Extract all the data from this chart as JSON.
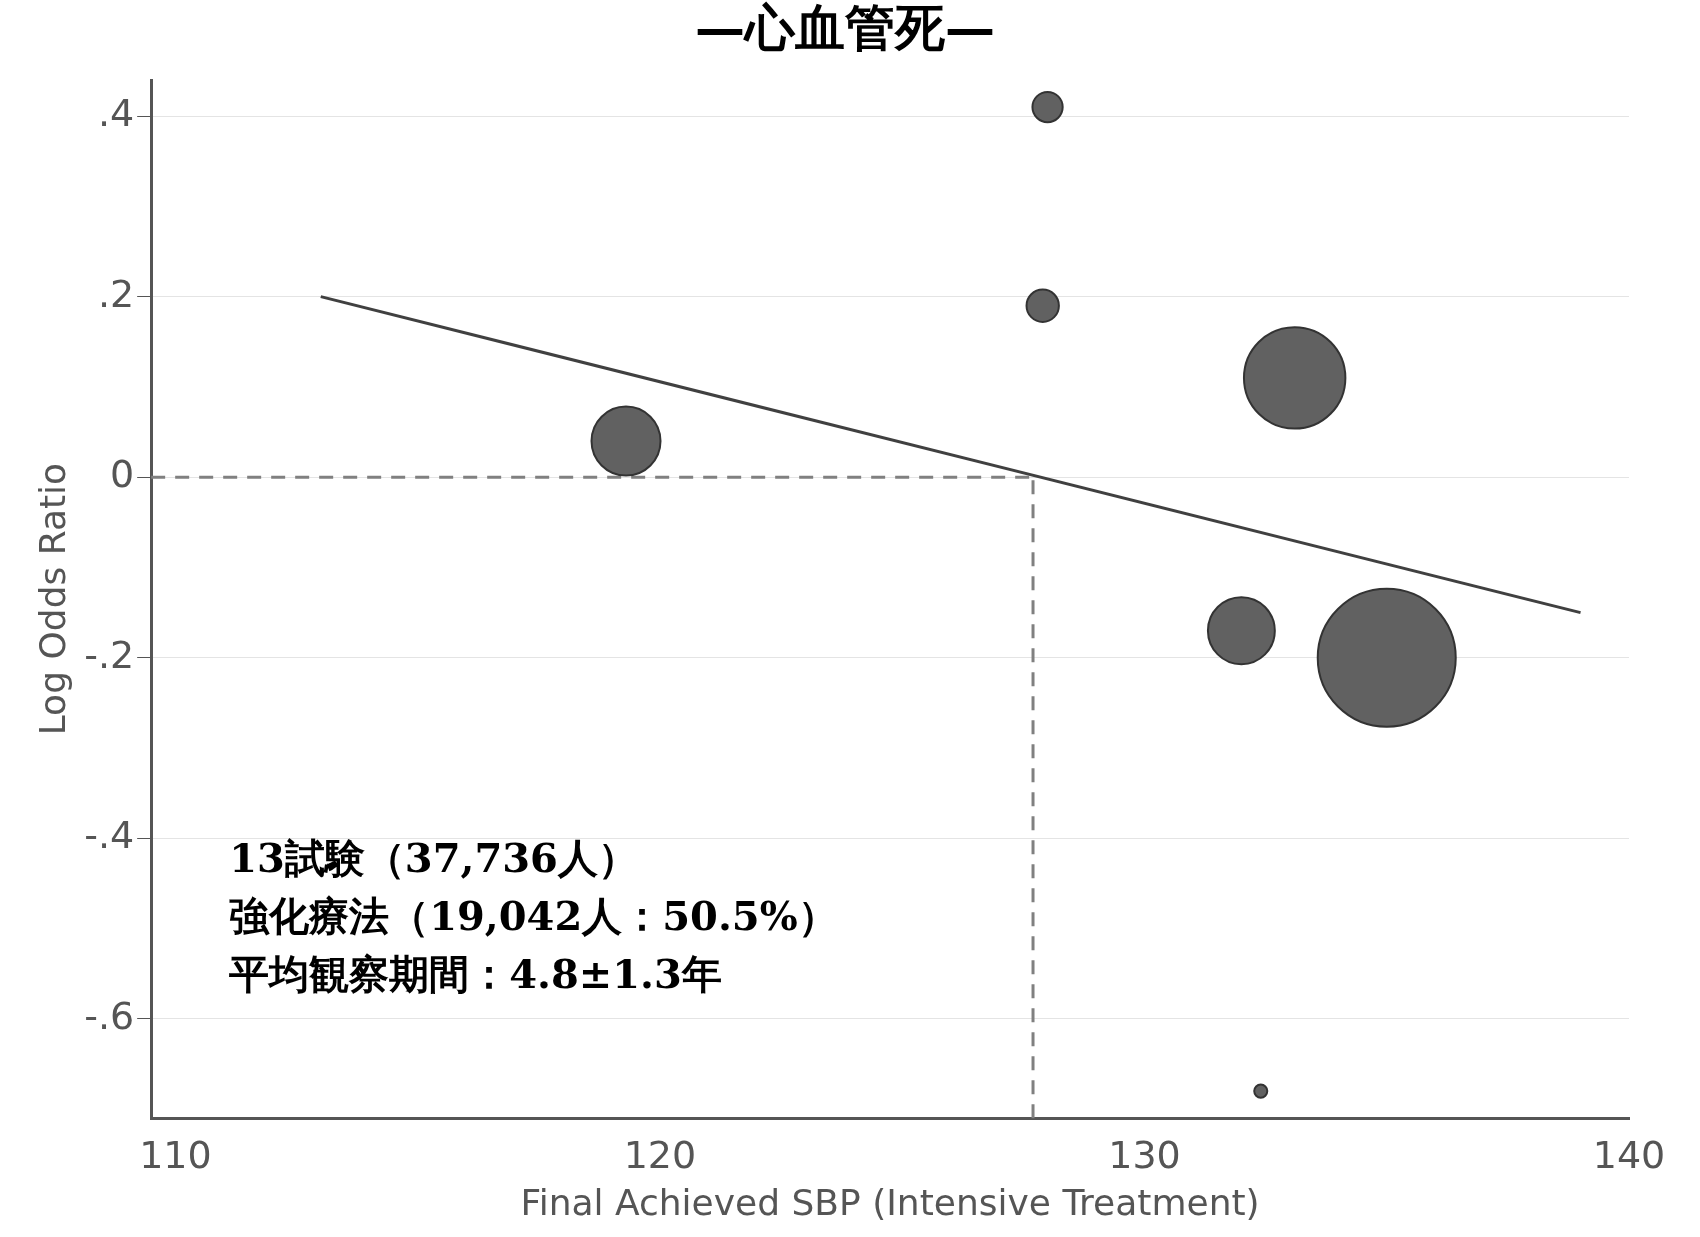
{
  "chart_data": {
    "type": "bubble",
    "title": "—心血管死—",
    "xlabel": "Final Achieved SBP (Intensive Treatment)",
    "ylabel": "Log Odds Ratio",
    "xlim": [
      109.5,
      140
    ],
    "xticks": [
      110,
      120,
      130,
      140
    ],
    "ylim": [
      -0.71,
      0.44
    ],
    "yticks": [
      {
        "value": 0.4,
        "label": ".4"
      },
      {
        "value": 0.2,
        "label": ".2"
      },
      0,
      {
        "value": -0.2,
        "label": "-.2"
      },
      {
        "value": -0.4,
        "label": "-.4"
      },
      {
        "value": -0.6,
        "label": "-.6"
      }
    ],
    "grid": "y",
    "legend": false,
    "series": [
      {
        "type": "bubble",
        "color": "#616161",
        "x": [
          119.3,
          128.0,
          127.9,
          133.1,
          132.0,
          135.0,
          132.4
        ],
        "values": [
          0.04,
          0.41,
          0.19,
          0.11,
          -0.17,
          -0.2,
          -0.68
        ],
        "sizes": [
          0.25,
          0.048,
          0.055,
          0.54,
          0.235,
          1,
          0.009
        ]
      },
      {
        "type": "line",
        "color": "#404040",
        "x": [
          113,
          139
        ],
        "values": [
          0.2,
          -0.15
        ],
        "marker": "none"
      }
    ],
    "ref_lines": [
      {
        "axis": "y",
        "value": 0,
        "color": "#808080",
        "line_style": "dashed"
      },
      {
        "axis": "x",
        "value": 127.7,
        "color": "#808080",
        "line_style": "dashed"
      }
    ],
    "annotations": [
      "13試験（37,736人）",
      "強化療法（19,042人：50.5%）",
      "平均観察期間：4.8±1.3年"
    ]
  }
}
